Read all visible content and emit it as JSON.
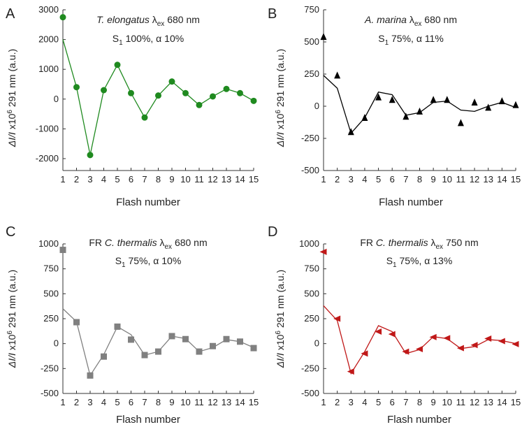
{
  "chart_data": [
    {
      "panel": "A",
      "type": "scatter",
      "title": {
        "species": "T. elongatus",
        "lambda": "λ",
        "sub": "ex",
        "wavelength": "680 nm"
      },
      "subtitle": {
        "s": "S",
        "s_sub": "1",
        "rest": "100%, α 10%"
      },
      "xlabel": "Flash number",
      "ylabel": {
        "dI": "ΔI/I",
        "mid": " x10",
        "sup": "6",
        "rest": " 291 nm (a.u.)"
      },
      "xlim": [
        1,
        15
      ],
      "ylim": [
        -2400,
        3000
      ],
      "yticks": [
        -2000,
        -1000,
        0,
        1000,
        2000,
        3000
      ],
      "xticks": [
        1,
        2,
        3,
        4,
        5,
        6,
        7,
        8,
        9,
        10,
        11,
        12,
        13,
        14,
        15
      ],
      "color": "#1f8a1f",
      "marker": "circle",
      "series": [
        {
          "kind": "measured",
          "x": [
            1,
            2,
            3,
            4,
            5,
            6,
            7,
            8,
            9,
            10,
            11,
            12,
            13,
            14,
            15
          ],
          "y": [
            2750,
            400,
            -1880,
            300,
            1150,
            200,
            -620,
            120,
            590,
            200,
            -200,
            90,
            340,
            200,
            -60
          ]
        },
        {
          "kind": "fit",
          "x": [
            1,
            2,
            3,
            4,
            5,
            6,
            7,
            8,
            9,
            10,
            11,
            12,
            13,
            14,
            15
          ],
          "y": [
            2000,
            400,
            -1880,
            300,
            1150,
            200,
            -620,
            120,
            590,
            200,
            -200,
            90,
            340,
            200,
            -60
          ]
        }
      ]
    },
    {
      "panel": "B",
      "type": "scatter",
      "title": {
        "species": "A. marina",
        "lambda": "λ",
        "sub": "ex",
        "wavelength": "680 nm"
      },
      "subtitle": {
        "s": "S",
        "s_sub": "1",
        "rest": "75%, α 11%"
      },
      "xlabel": "Flash number",
      "ylabel": {
        "dI": "ΔI/I",
        "mid": " x10",
        "sup": "6",
        "rest": " 291 nm (a.u.)"
      },
      "xlim": [
        1,
        15
      ],
      "ylim": [
        -500,
        750
      ],
      "yticks": [
        -500,
        -250,
        0,
        250,
        500,
        750
      ],
      "xticks": [
        1,
        2,
        3,
        4,
        5,
        6,
        7,
        8,
        9,
        10,
        11,
        12,
        13,
        14,
        15
      ],
      "color": "#000000",
      "marker": "triangle-up",
      "series": [
        {
          "kind": "measured",
          "x": [
            1,
            2,
            3,
            4,
            5,
            6,
            7,
            8,
            9,
            10,
            11,
            12,
            13,
            14,
            15
          ],
          "y": [
            540,
            240,
            -200,
            -90,
            70,
            50,
            -80,
            -40,
            50,
            50,
            -130,
            30,
            -10,
            40,
            10
          ]
        },
        {
          "kind": "fit",
          "x": [
            1,
            2,
            3,
            4,
            5,
            6,
            7,
            8,
            9,
            10,
            11,
            12,
            13,
            14,
            15
          ],
          "y": [
            240,
            140,
            -210,
            -90,
            110,
            90,
            -70,
            -50,
            30,
            40,
            -30,
            -40,
            0,
            30,
            -10
          ]
        }
      ]
    },
    {
      "panel": "C",
      "type": "scatter",
      "title": {
        "prefix": "FR ",
        "species": "C. thermalis",
        "lambda": "λ",
        "sub": "ex",
        "wavelength": "680 nm"
      },
      "subtitle": {
        "s": "S",
        "s_sub": "1",
        "rest": "75%, α 10%"
      },
      "xlabel": "Flash number",
      "ylabel": {
        "dI": "ΔI/I",
        "mid": " x10",
        "sup": "6",
        "rest": " 291 nm (a.u.)"
      },
      "xlim": [
        1,
        15
      ],
      "ylim": [
        -500,
        1000
      ],
      "yticks": [
        -500,
        -250,
        0,
        250,
        500,
        750,
        1000
      ],
      "xticks": [
        1,
        2,
        3,
        4,
        5,
        6,
        7,
        8,
        9,
        10,
        11,
        12,
        13,
        14,
        15
      ],
      "color": "#808080",
      "marker": "square",
      "series": [
        {
          "kind": "measured",
          "x": [
            1,
            2,
            3,
            4,
            5,
            6,
            7,
            8,
            9,
            10,
            11,
            12,
            13,
            14,
            15
          ],
          "y": [
            940,
            215,
            -320,
            -130,
            170,
            40,
            -115,
            -80,
            75,
            45,
            -80,
            -25,
            45,
            20,
            -45
          ]
        },
        {
          "kind": "fit",
          "x": [
            1,
            2,
            3,
            4,
            5,
            6,
            7,
            8,
            9,
            10,
            11,
            12,
            13,
            14,
            15
          ],
          "y": [
            350,
            220,
            -320,
            -110,
            170,
            90,
            -115,
            -80,
            75,
            50,
            -80,
            -40,
            40,
            20,
            -40
          ]
        }
      ]
    },
    {
      "panel": "D",
      "type": "scatter",
      "title": {
        "prefix": "FR ",
        "species": "C. thermalis",
        "lambda": "λ",
        "sub": "ex",
        "wavelength": "750 nm"
      },
      "subtitle": {
        "s": "S",
        "s_sub": "1",
        "rest": "75%, α 13%"
      },
      "xlabel": "Flash number",
      "ylabel": {
        "dI": "ΔI/I",
        "mid": " x10",
        "sup": "6",
        "rest": " 291 nm (a.u.)"
      },
      "xlim": [
        1,
        15
      ],
      "ylim": [
        -500,
        1000
      ],
      "yticks": [
        -500,
        -250,
        0,
        250,
        500,
        750,
        1000
      ],
      "xticks": [
        1,
        2,
        3,
        4,
        5,
        6,
        7,
        8,
        9,
        10,
        11,
        12,
        13,
        14,
        15
      ],
      "color": "#c01818",
      "marker": "triangle-left",
      "series": [
        {
          "kind": "measured",
          "x": [
            1,
            2,
            3,
            4,
            5,
            6,
            7,
            8,
            9,
            10,
            11,
            12,
            13,
            14,
            15
          ],
          "y": [
            920,
            250,
            -280,
            -100,
            120,
            95,
            -80,
            -55,
            65,
            55,
            -45,
            -15,
            50,
            25,
            -5
          ]
        },
        {
          "kind": "fit",
          "x": [
            1,
            2,
            3,
            4,
            5,
            6,
            7,
            8,
            9,
            10,
            11,
            12,
            13,
            14,
            15
          ],
          "y": [
            380,
            230,
            -300,
            -80,
            180,
            120,
            -100,
            -60,
            70,
            50,
            -50,
            -30,
            40,
            30,
            0
          ]
        }
      ]
    }
  ]
}
